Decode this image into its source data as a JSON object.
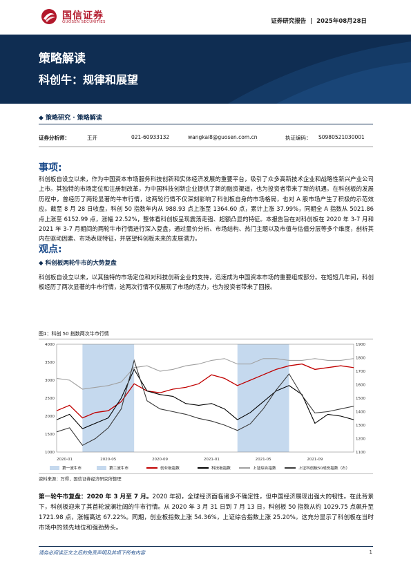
{
  "header": {
    "brand_cn": "国信证券",
    "brand_en": "GUOSEN SECURITIES",
    "report_type": "证券研究报告",
    "date": "2025年08月28日"
  },
  "banner": {
    "title": "策略解读",
    "subtitle": "科创牛：规律和展望"
  },
  "category": "◆ 策略研究 · 策略解读",
  "analyst": {
    "role": "证券分析师：",
    "name": "王开",
    "phone": "021-60933132",
    "email": "wangkai8@guosen.com.cn",
    "cert_label": "执证编码：",
    "cert": "S0980521030001"
  },
  "matters": {
    "title": "事项:",
    "body": "科创板自设立以来，作为中国资本市场服务科技创新和实体经济发展的重要平台，吸引了众多高新技术企业和战略性新兴产业公司上市。其独特的市场定位和注册制改革，为中国科技创新企业提供了新的融资渠道，也为投资者带来了新的机遇。在科创板的发展历程中，曾经历了两轮显著的牛市行情，这两轮行情不仅深刻影响了科创板自身的市场格局，也对 A 股市场产生了积极的示范效应。截至 8 月 28 日收盘，科创 50 指数年内从 988.93 点上涨至 1364.60 点，累计上涨 37.99%，同期全 A 指数从 5021.86 点上涨至 6152.99 点，涨幅 22.52%，整体看科创板呈现震荡走强、超额凸显的特征。本报告旨在对科创板在 2020 年 3-7 月和 2021 年 3-7 月期间的两轮牛市行情进行深入复盘，通过量价分析、市场结构、热门主题以及市值与估值分层等多个维度，剖析其内在驱动因素、市场表现特征，并展望科创板未来的发展潜力。"
  },
  "views": {
    "title": "观点:",
    "sub_heading": "◆ 科创板两轮牛市的大势复盘",
    "body": "科创板自设立以来，以其独特的市场定位和对科技创新企业的支持，迅速成为中国资本市场的重要组成部分。在短短几年间，科创板经历了两次显著的牛市行情，这两次行情不仅展现了市场的活力，也为投资者带来了回报。"
  },
  "figure": {
    "caption": "图1：科创 50 指数两次牛市行情",
    "source": "资料来源：万得，国信证券经济研究所整理",
    "legend": [
      "第一波牛市",
      "第二波牛市",
      "创业板指数",
      "科技板指数",
      "上证综合指数",
      "上证科创板50成份指数（右）"
    ]
  },
  "chart_data": {
    "type": "line",
    "x": [
      "2020-01",
      "2020-02",
      "2020-03",
      "2020-04",
      "2020-05",
      "2020-06",
      "2020-07",
      "2020-08",
      "2020-09",
      "2020-10",
      "2020-11",
      "2020-12",
      "2021-01",
      "2021-02",
      "2021-03",
      "2021-04",
      "2021-05",
      "2021-06",
      "2021-07",
      "2021-08",
      "2021-09",
      "2021-10",
      "2021-11",
      "2021-12"
    ],
    "x_tick_labels": [
      "2020-01",
      "2020-05",
      "2020-09",
      "2021-01",
      "2021-05",
      "2021-09"
    ],
    "ylim_left": [
      1000,
      4000
    ],
    "ylim_right": [
      1100,
      1900
    ],
    "y_ticks_left": [
      1000,
      1500,
      2000,
      2500,
      3000,
      3500,
      4000
    ],
    "y_ticks_right": [
      1100,
      1200,
      1300,
      1400,
      1500,
      1600,
      1700,
      1800,
      1900
    ],
    "shaded_periods": [
      {
        "name": "第一波牛市",
        "from": "2020-03",
        "to": "2020-07"
      },
      {
        "name": "第二波牛市",
        "from": "2021-03",
        "to": "2021-07"
      }
    ],
    "series": [
      {
        "name": "创业板指数",
        "axis": "left",
        "color": "#c00000",
        "values": [
          2150,
          2300,
          1950,
          2100,
          2150,
          2400,
          2900,
          2700,
          2650,
          2750,
          2800,
          2900,
          3150,
          3050,
          2850,
          3000,
          3150,
          3300,
          3400,
          3450,
          3300,
          3350,
          3400,
          3350
        ]
      },
      {
        "name": "科技板指数",
        "axis": "left",
        "color": "#000000",
        "values": [
          1900,
          2050,
          1650,
          1800,
          1950,
          2500,
          3300,
          2700,
          2600,
          2550,
          2350,
          2300,
          2350,
          2200,
          1900,
          2100,
          2400,
          2700,
          2850,
          2600,
          1800,
          2050,
          2000,
          1900
        ]
      },
      {
        "name": "上证综合指数",
        "axis": "left",
        "color": "#a0a0a0",
        "values": [
          3050,
          3000,
          2750,
          2800,
          2850,
          2950,
          3350,
          3400,
          3250,
          3300,
          3400,
          3450,
          3550,
          3600,
          3450,
          3450,
          3600,
          3600,
          3550,
          3550,
          3600,
          3550,
          3550,
          3600
        ]
      },
      {
        "name": "上证科创板50成份指数（右）",
        "axis": "right",
        "color": "#3a3a3a",
        "values": [
          1250,
          1280,
          1150,
          1200,
          1280,
          1420,
          1780,
          1480,
          1420,
          1400,
          1380,
          1350,
          1330,
          1300,
          1260,
          1310,
          1420,
          1560,
          1680,
          1520,
          1390,
          1400,
          1420,
          1440
        ]
      }
    ]
  },
  "bull1": {
    "lead": "第一轮牛市复盘：2020 年 3 月至 7 月。",
    "body": "2020 年初，全球经济面临诸多不确定性，但中国经济展现出强大的韧性。在此背景下，科创板迎来了其首轮波澜壮阔的牛市行情。从 2020 年 3 月 31 日到 7 月 13 日，科创板 50 指数从约 1029.75 点飙升至 1721.98 点，涨幅高达 67.22%。同期，创业板指数上涨 54.36%，上证综合指数上涨 25.20%。这充分显示了科创板在当时市场中的领先地位和强劲势头。"
  },
  "footer": {
    "disclaimer": "请务必阅读正文之后的免责声明及其项下所有内容",
    "page": "1"
  },
  "colors": {
    "navy": "#0f2d52",
    "brand_red": "#b2182b",
    "section_blue": "#1a4a8a",
    "shade": "#c5d9ee"
  }
}
